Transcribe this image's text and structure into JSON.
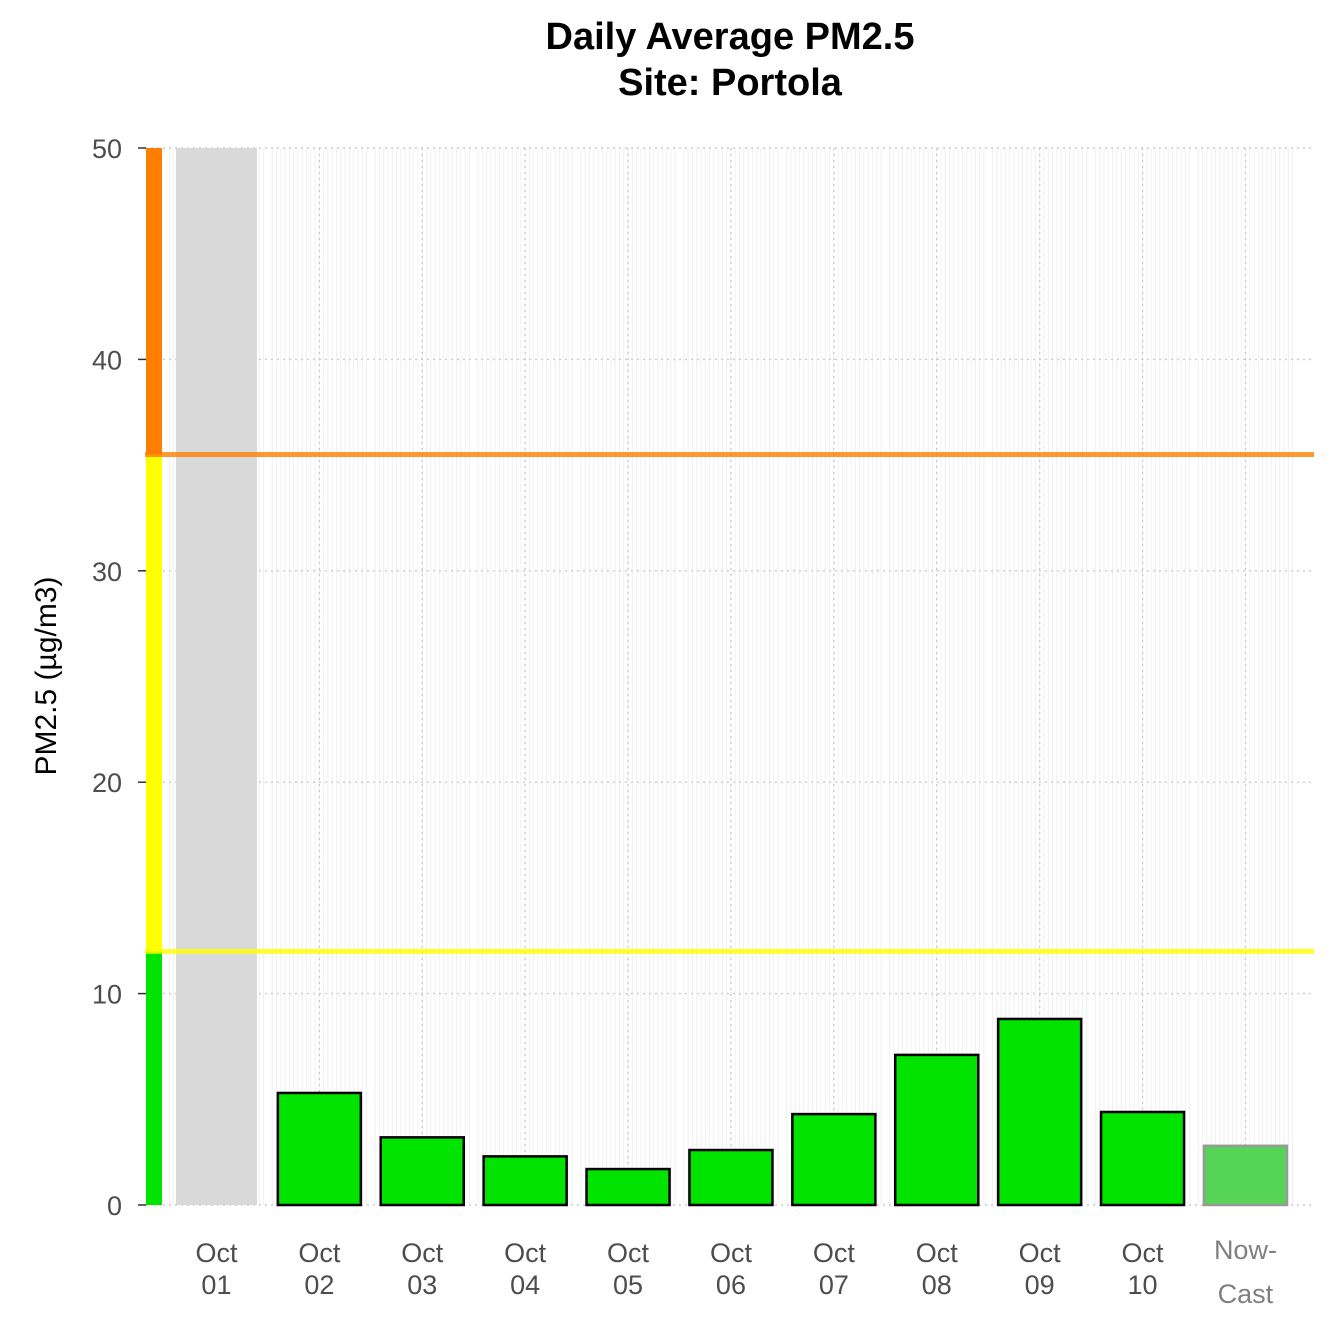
{
  "chart_data": {
    "type": "bar",
    "title": "Daily Average PM2.5",
    "subtitle": "Site: Portola",
    "ylabel": "PM2.5 (µg/m3)",
    "xlabel": "",
    "ylim": [
      0,
      50
    ],
    "yticks": [
      0,
      10,
      20,
      30,
      40,
      50
    ],
    "grid": true,
    "categories": [
      {
        "line1": "Oct",
        "line2": "01"
      },
      {
        "line1": "Oct",
        "line2": "02"
      },
      {
        "line1": "Oct",
        "line2": "03"
      },
      {
        "line1": "Oct",
        "line2": "04"
      },
      {
        "line1": "Oct",
        "line2": "05"
      },
      {
        "line1": "Oct",
        "line2": "06"
      },
      {
        "line1": "Oct",
        "line2": "07"
      },
      {
        "line1": "Oct",
        "line2": "08"
      },
      {
        "line1": "Oct",
        "line2": "09"
      },
      {
        "line1": "Oct",
        "line2": "10"
      },
      {
        "line1": "Now-",
        "line2": "Cast"
      }
    ],
    "values": [
      null,
      5.3,
      3.2,
      2.3,
      1.7,
      2.6,
      4.3,
      7.1,
      8.8,
      4.4,
      2.8
    ],
    "missing_day": "Oct 01",
    "thresholds": [
      {
        "value": 12,
        "color": "#ffff00"
      },
      {
        "value": 35.5,
        "color": "#ff7e00"
      }
    ],
    "aqi_bands": [
      {
        "from": 0,
        "to": 12,
        "color": "#00e400"
      },
      {
        "from": 12,
        "to": 35.5,
        "color": "#ffff00"
      },
      {
        "from": 35.5,
        "to": 50,
        "color": "#ff7e00"
      }
    ],
    "colors": {
      "bar": "#00e400",
      "bar_border": "#000000",
      "nowcast_bar": "#55d455",
      "nowcast_border": "#999999",
      "missing": "#d9d9d9",
      "grid": "#cccccc",
      "axis_text": "#4d4d4d"
    }
  }
}
